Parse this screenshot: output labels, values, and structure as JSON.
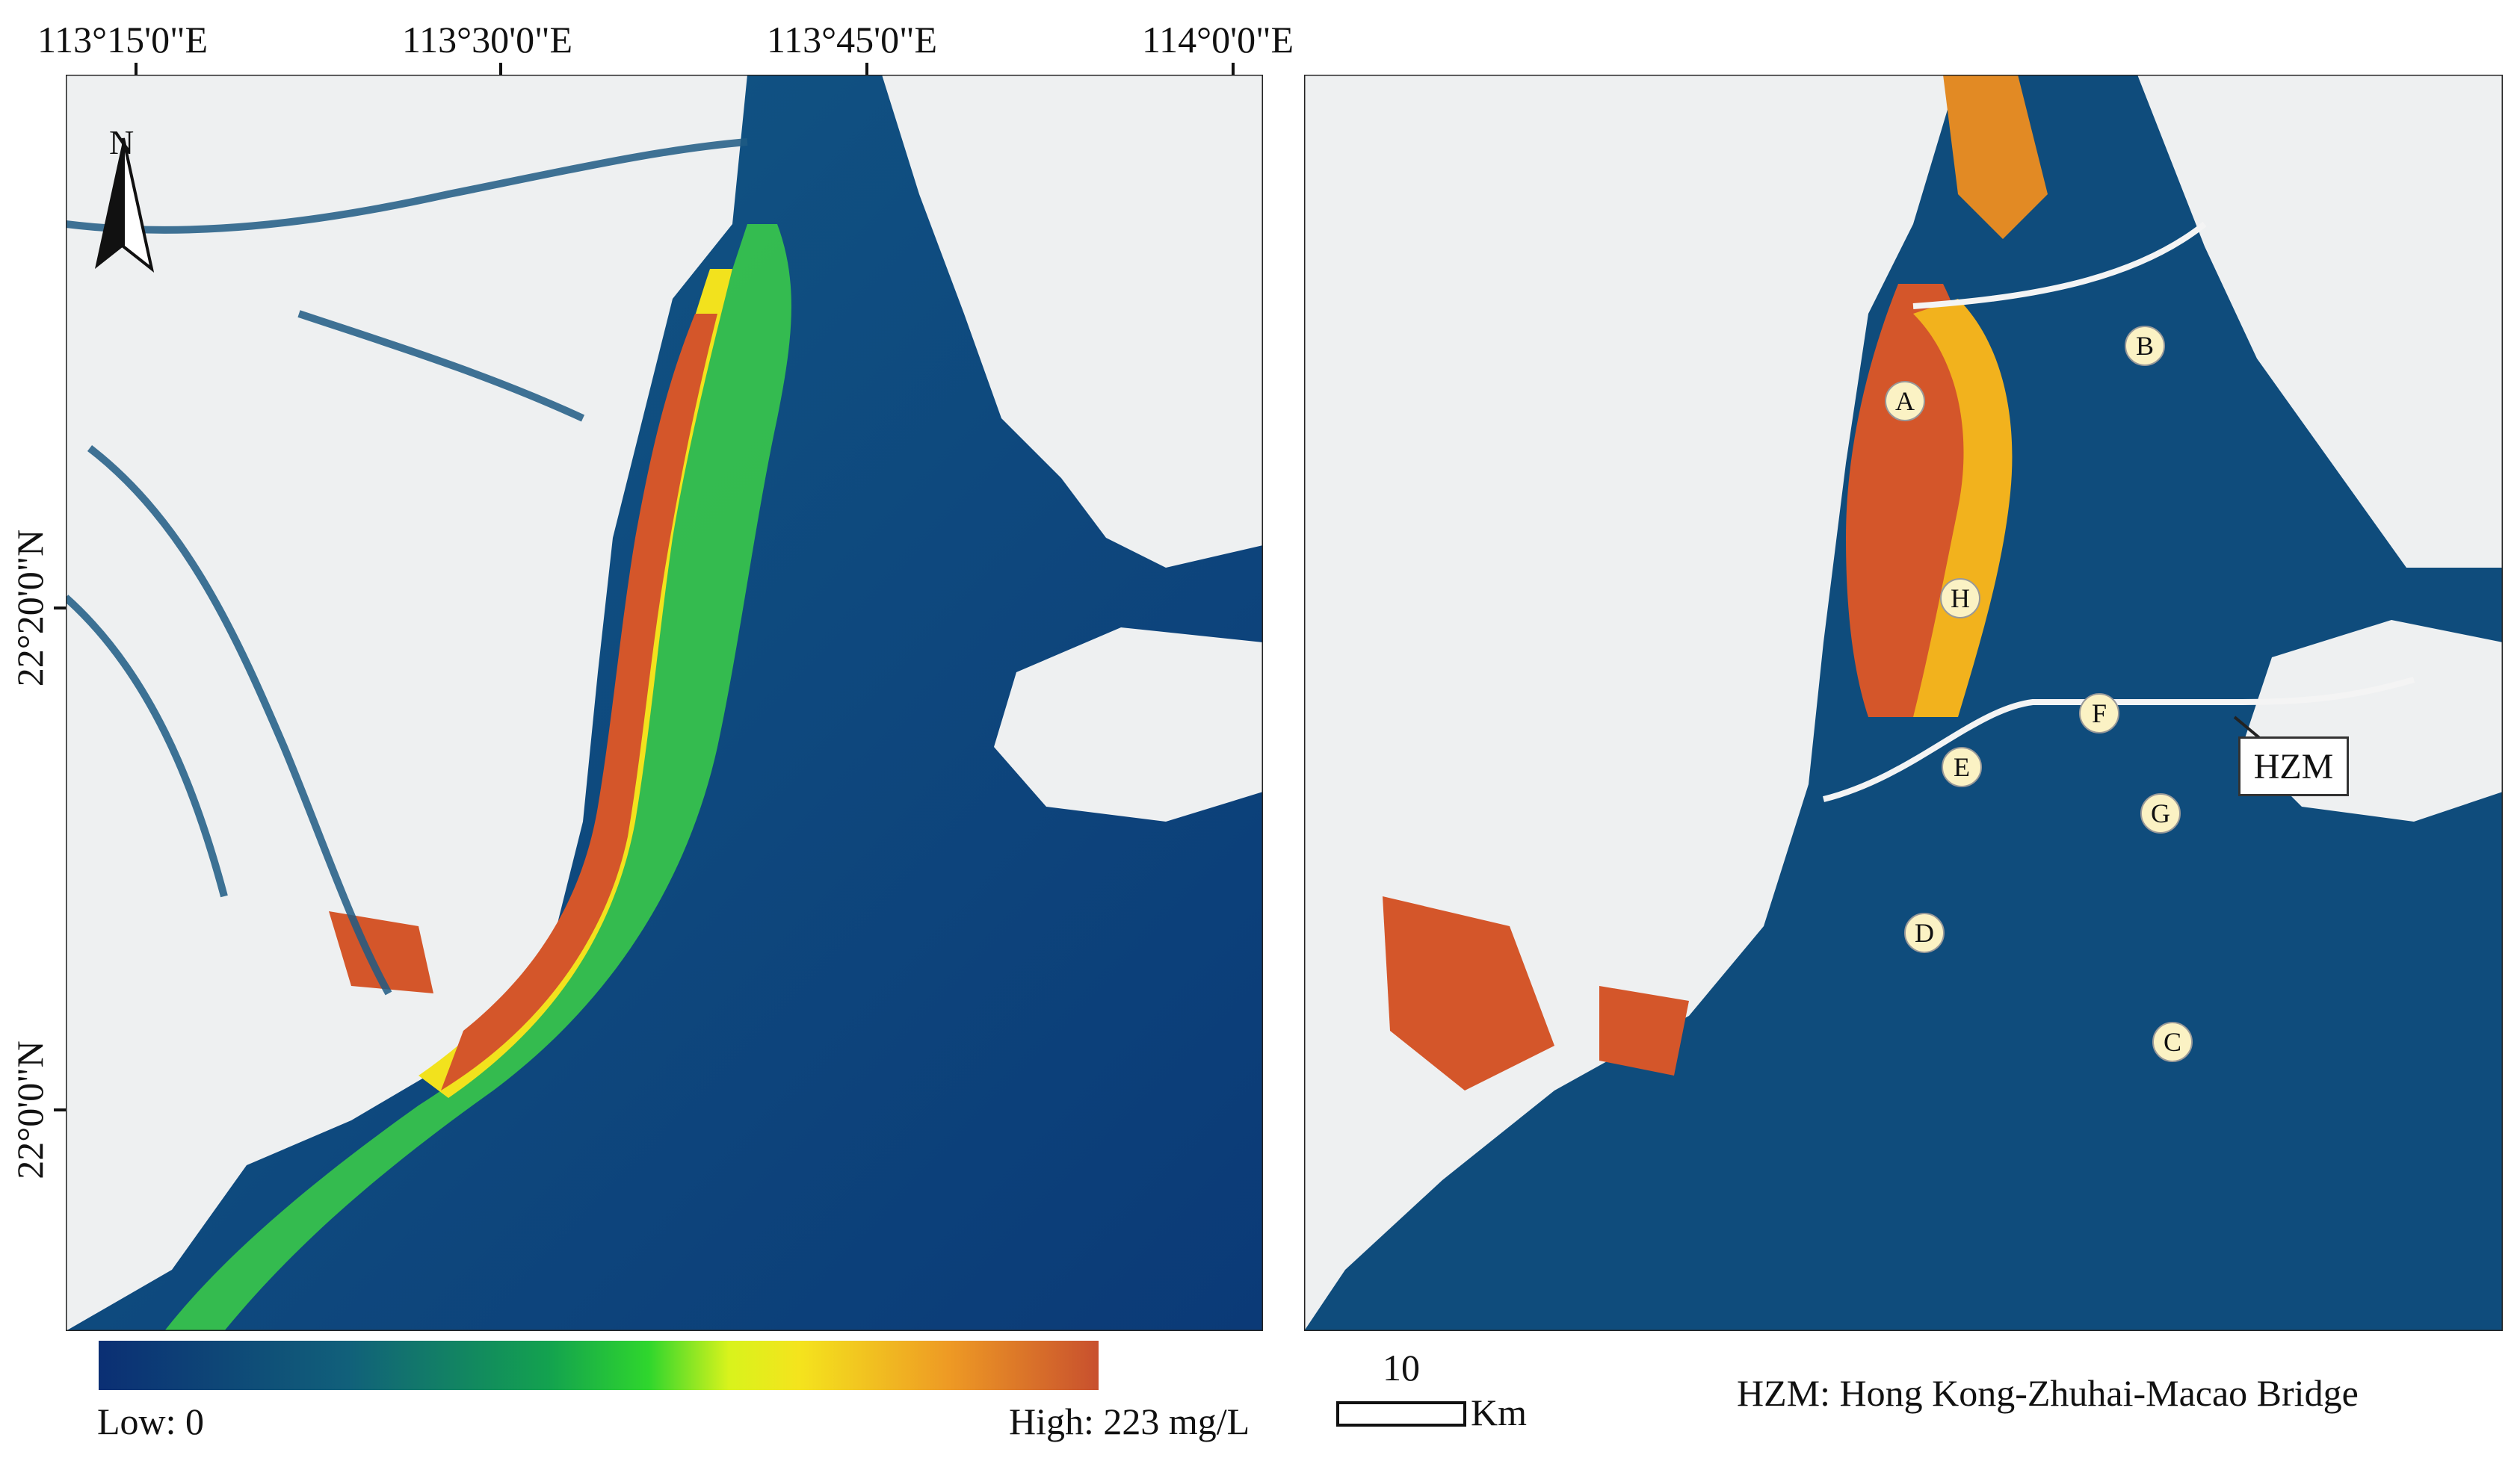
{
  "top_longitude_labels": [
    "113°15'0\"E",
    "113°30'0\"E",
    "113°45'0\"E",
    "114°0'0\"E"
  ],
  "left_latitude_labels": [
    "22°20'0\"N",
    "22°0'0\"N"
  ],
  "north_arrow_label": "N",
  "site_markers": [
    "A",
    "B",
    "C",
    "D",
    "E",
    "F",
    "G",
    "H"
  ],
  "bridge_callout": "HZM",
  "legend": {
    "low_label": "Low: 0",
    "high_label": "High: 223 mg/L",
    "colors": [
      "#0b2f74",
      "#11607a",
      "#13a24f",
      "#2fd62d",
      "#d8f31c",
      "#f4e41d",
      "#ee9a24",
      "#c8502e"
    ]
  },
  "scale_bar": {
    "value": "10",
    "unit": "Km"
  },
  "abbreviation_note": "HZM: Hong Kong-Zhuhai-Macao Bridge",
  "colors": {
    "water_low": "#0b3a77",
    "land": "#eef0f1",
    "turbid_high": "#d4562a"
  }
}
